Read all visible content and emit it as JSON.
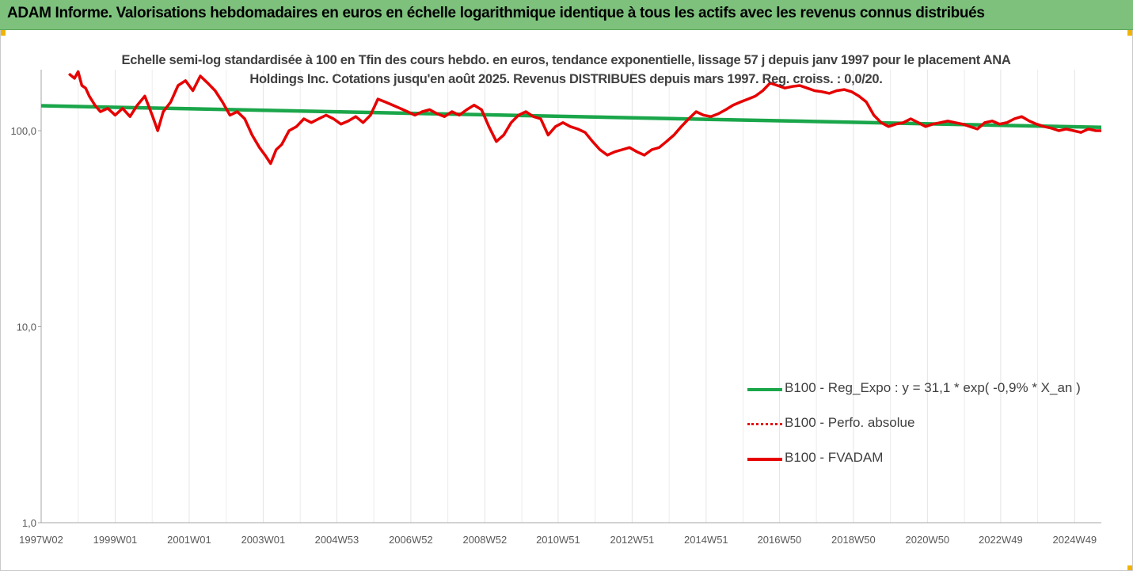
{
  "banner": {
    "title": "ADAM Informe. Valorisations hebdomadaires en euros en échelle logarithmique identique à tous les actifs avec les revenus connus distribués"
  },
  "colors": {
    "banner_bg": "#7dc17d",
    "trend": "#1aa64a",
    "price": "#e60000",
    "corner_accent": "#f0b400"
  },
  "chart_data": {
    "type": "line",
    "title": "Echelle semi-log standardisée à 100 en Tfin des cours hebdo. en euros, tendance exponentielle, lissage 57 j depuis janv 1997 pour le placement ANA Holdings Inc. Cotations jusqu'en août 2025. Revenus DISTRIBUES depuis mars 1997. Reg. croiss. : 0,0/20.",
    "y_scale": "log",
    "ylim": [
      1,
      200
    ],
    "y_ticks": [
      {
        "value": 1,
        "label": "1,0"
      },
      {
        "value": 10,
        "label": "10,0"
      },
      {
        "value": 100,
        "label": "100,0"
      }
    ],
    "x_range": [
      1997.0,
      2025.65
    ],
    "x_tick_labels": [
      {
        "x": 1997.0,
        "label": "1997W02"
      },
      {
        "x": 1999.0,
        "label": "1999W01"
      },
      {
        "x": 2001.0,
        "label": "2001W01"
      },
      {
        "x": 2003.0,
        "label": "2003W01"
      },
      {
        "x": 2004.99,
        "label": "2004W53"
      },
      {
        "x": 2006.99,
        "label": "2006W52"
      },
      {
        "x": 2008.99,
        "label": "2008W52"
      },
      {
        "x": 2010.97,
        "label": "2010W51"
      },
      {
        "x": 2012.97,
        "label": "2012W51"
      },
      {
        "x": 2014.97,
        "label": "2014W51"
      },
      {
        "x": 2016.95,
        "label": "2016W50"
      },
      {
        "x": 2018.95,
        "label": "2018W50"
      },
      {
        "x": 2020.95,
        "label": "2020W50"
      },
      {
        "x": 2022.93,
        "label": "2022W49"
      },
      {
        "x": 2024.93,
        "label": "2024W49"
      }
    ],
    "grid": "vertical",
    "legend_position": "bottom-right",
    "series": [
      {
        "name": "B100 - Reg_Expo : y = 31,1 * exp( -0,9% *  X_an )",
        "style": "solid-thick",
        "color": "#1aa64a",
        "x": [
          1997.0,
          2025.65
        ],
        "y": [
          134,
          104
        ]
      },
      {
        "name": "B100 - Perfo. absolue",
        "style": "dotted",
        "color": "#e60000",
        "x": [],
        "y": []
      },
      {
        "name": "B100 - FVADAM",
        "style": "solid-thick",
        "color": "#e60000",
        "x": [
          1997.75,
          1997.9,
          1998.0,
          1998.1,
          1998.2,
          1998.3,
          1998.45,
          1998.6,
          1998.8,
          1999.0,
          1999.2,
          1999.4,
          1999.6,
          1999.8,
          2000.0,
          2000.15,
          2000.3,
          2000.5,
          2000.7,
          2000.9,
          2001.1,
          2001.3,
          2001.5,
          2001.7,
          2001.9,
          2002.1,
          2002.3,
          2002.5,
          2002.7,
          2002.9,
          2003.05,
          2003.2,
          2003.35,
          2003.5,
          2003.7,
          2003.9,
          2004.1,
          2004.3,
          2004.5,
          2004.7,
          2004.9,
          2005.1,
          2005.3,
          2005.5,
          2005.7,
          2005.9,
          2006.1,
          2006.3,
          2006.5,
          2006.7,
          2006.9,
          2007.1,
          2007.3,
          2007.5,
          2007.7,
          2007.9,
          2008.1,
          2008.3,
          2008.5,
          2008.7,
          2008.9,
          2009.1,
          2009.3,
          2009.5,
          2009.7,
          2009.9,
          2010.1,
          2010.3,
          2010.5,
          2010.7,
          2010.9,
          2011.1,
          2011.3,
          2011.5,
          2011.7,
          2011.9,
          2012.1,
          2012.3,
          2012.5,
          2012.7,
          2012.9,
          2013.1,
          2013.3,
          2013.5,
          2013.7,
          2013.9,
          2014.1,
          2014.3,
          2014.5,
          2014.7,
          2014.9,
          2015.1,
          2015.3,
          2015.5,
          2015.7,
          2015.9,
          2016.1,
          2016.3,
          2016.5,
          2016.7,
          2016.9,
          2017.1,
          2017.3,
          2017.5,
          2017.7,
          2017.9,
          2018.1,
          2018.3,
          2018.5,
          2018.7,
          2018.9,
          2019.1,
          2019.3,
          2019.5,
          2019.7,
          2019.9,
          2020.1,
          2020.3,
          2020.5,
          2020.7,
          2020.9,
          2021.1,
          2021.3,
          2021.5,
          2021.7,
          2021.9,
          2022.1,
          2022.3,
          2022.5,
          2022.7,
          2022.9,
          2023.1,
          2023.3,
          2023.5,
          2023.7,
          2023.9,
          2024.1,
          2024.3,
          2024.5,
          2024.7,
          2024.9,
          2025.1,
          2025.3,
          2025.5,
          2025.65
        ],
        "y": [
          195,
          185,
          200,
          170,
          165,
          150,
          135,
          125,
          130,
          120,
          130,
          118,
          135,
          150,
          120,
          100,
          125,
          140,
          170,
          180,
          160,
          190,
          175,
          160,
          140,
          120,
          125,
          115,
          95,
          82,
          75,
          68,
          80,
          85,
          100,
          105,
          115,
          110,
          115,
          120,
          115,
          108,
          112,
          118,
          110,
          120,
          145,
          140,
          135,
          130,
          125,
          120,
          125,
          128,
          122,
          118,
          125,
          120,
          128,
          135,
          128,
          105,
          88,
          95,
          110,
          120,
          125,
          118,
          115,
          95,
          105,
          110,
          105,
          102,
          98,
          88,
          80,
          75,
          78,
          80,
          82,
          78,
          75,
          80,
          82,
          88,
          95,
          105,
          115,
          125,
          120,
          118,
          122,
          128,
          135,
          140,
          145,
          150,
          160,
          175,
          170,
          165,
          168,
          170,
          165,
          160,
          158,
          155,
          160,
          162,
          158,
          150,
          140,
          120,
          110,
          105,
          108,
          110,
          115,
          110,
          105,
          108,
          110,
          112,
          110,
          108,
          105,
          102,
          110,
          112,
          108,
          110,
          115,
          118,
          112,
          108,
          105,
          103,
          100,
          102,
          100,
          98,
          102,
          100,
          100
        ]
      }
    ]
  }
}
